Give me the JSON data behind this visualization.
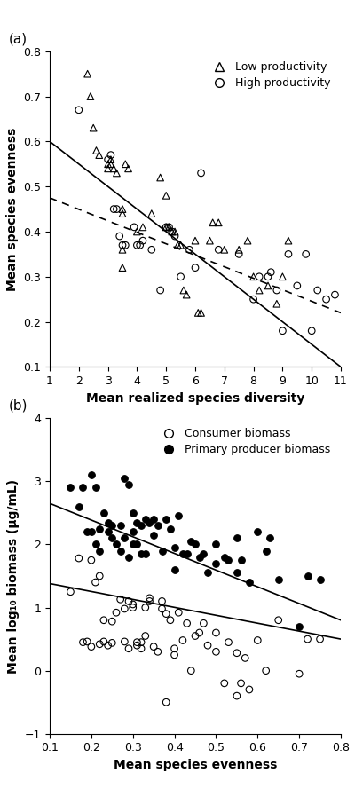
{
  "panel_a": {
    "title_label": "(a)",
    "xlabel": "Mean realized species diversity",
    "ylabel": "Mean species evenness",
    "xlim": [
      1,
      11
    ],
    "ylim": [
      0.1,
      0.8
    ],
    "xticks": [
      1,
      2,
      3,
      4,
      5,
      6,
      7,
      8,
      9,
      10,
      11
    ],
    "yticks": [
      0.1,
      0.2,
      0.3,
      0.4,
      0.5,
      0.6,
      0.7,
      0.8
    ],
    "low_prod_x": [
      2.3,
      2.4,
      2.5,
      2.6,
      2.7,
      3.0,
      3.0,
      3.1,
      3.1,
      3.2,
      3.3,
      3.5,
      3.5,
      3.5,
      3.5,
      3.6,
      3.7,
      4.0,
      4.2,
      4.5,
      4.8,
      5.0,
      5.0,
      5.1,
      5.2,
      5.3,
      5.4,
      5.5,
      5.6,
      5.7,
      6.0,
      6.1,
      6.2,
      6.5,
      6.6,
      6.8,
      7.0,
      7.5,
      7.8,
      8.0,
      8.2,
      8.5,
      8.8,
      9.0,
      9.2
    ],
    "low_prod_y": [
      0.75,
      0.7,
      0.63,
      0.58,
      0.57,
      0.54,
      0.55,
      0.55,
      0.56,
      0.54,
      0.53,
      0.45,
      0.44,
      0.36,
      0.32,
      0.55,
      0.54,
      0.4,
      0.41,
      0.44,
      0.52,
      0.48,
      0.41,
      0.41,
      0.4,
      0.4,
      0.37,
      0.37,
      0.27,
      0.26,
      0.38,
      0.22,
      0.22,
      0.38,
      0.42,
      0.42,
      0.36,
      0.36,
      0.38,
      0.3,
      0.27,
      0.28,
      0.24,
      0.3,
      0.38
    ],
    "high_prod_x": [
      2.0,
      3.0,
      3.1,
      3.2,
      3.3,
      3.4,
      3.5,
      3.6,
      3.9,
      4.0,
      4.1,
      4.2,
      4.5,
      4.8,
      5.0,
      5.1,
      5.2,
      5.3,
      5.5,
      5.8,
      6.0,
      6.2,
      6.8,
      7.5,
      8.0,
      8.2,
      8.5,
      8.6,
      8.8,
      9.0,
      9.2,
      9.5,
      9.8,
      10.0,
      10.2,
      10.5,
      10.8
    ],
    "high_prod_y": [
      0.67,
      0.56,
      0.57,
      0.45,
      0.45,
      0.39,
      0.37,
      0.37,
      0.41,
      0.37,
      0.37,
      0.38,
      0.36,
      0.27,
      0.41,
      0.41,
      0.4,
      0.39,
      0.3,
      0.36,
      0.32,
      0.53,
      0.36,
      0.35,
      0.25,
      0.3,
      0.3,
      0.31,
      0.27,
      0.18,
      0.35,
      0.28,
      0.35,
      0.18,
      0.27,
      0.25,
      0.26
    ],
    "solid_line_x": [
      1,
      11
    ],
    "solid_line_y": [
      0.6,
      0.1
    ],
    "dashed_line_x": [
      1,
      11
    ],
    "dashed_line_y": [
      0.475,
      0.22
    ],
    "legend_labels": [
      "Low productivity",
      "High productivity"
    ]
  },
  "panel_b": {
    "title_label": "(b)",
    "xlabel": "Mean species evenness",
    "ylabel": "Mean log₁₀ biomass (μg/mL)",
    "xlim": [
      0.1,
      0.8
    ],
    "ylim": [
      -1,
      4
    ],
    "xticks": [
      0.1,
      0.2,
      0.3,
      0.4,
      0.5,
      0.6,
      0.7,
      0.8
    ],
    "yticks": [
      -1,
      0,
      1,
      2,
      3,
      4
    ],
    "consumer_x": [
      0.15,
      0.17,
      0.18,
      0.19,
      0.2,
      0.2,
      0.21,
      0.22,
      0.22,
      0.23,
      0.23,
      0.24,
      0.25,
      0.25,
      0.26,
      0.27,
      0.28,
      0.28,
      0.29,
      0.29,
      0.3,
      0.3,
      0.31,
      0.31,
      0.32,
      0.32,
      0.33,
      0.33,
      0.34,
      0.34,
      0.35,
      0.36,
      0.37,
      0.37,
      0.38,
      0.38,
      0.39,
      0.4,
      0.4,
      0.41,
      0.42,
      0.43,
      0.44,
      0.45,
      0.46,
      0.47,
      0.48,
      0.5,
      0.5,
      0.52,
      0.53,
      0.55,
      0.55,
      0.56,
      0.57,
      0.58,
      0.6,
      0.62,
      0.65,
      0.7,
      0.72,
      0.75
    ],
    "consumer_y": [
      1.25,
      1.78,
      0.45,
      0.46,
      1.75,
      0.38,
      1.4,
      1.5,
      0.42,
      0.8,
      0.46,
      0.4,
      0.78,
      0.44,
      0.92,
      1.13,
      0.98,
      0.46,
      1.1,
      0.35,
      1.05,
      1.0,
      0.4,
      0.45,
      0.35,
      0.45,
      1.0,
      0.55,
      1.1,
      1.15,
      0.38,
      0.3,
      0.98,
      1.1,
      0.9,
      -0.5,
      0.8,
      0.35,
      0.25,
      0.92,
      0.48,
      0.75,
      0.0,
      0.55,
      0.6,
      0.75,
      0.4,
      0.6,
      0.3,
      -0.2,
      0.45,
      0.28,
      -0.4,
      -0.2,
      0.2,
      -0.3,
      0.48,
      0.0,
      0.8,
      -0.05,
      0.5,
      0.5
    ],
    "producer_x": [
      0.15,
      0.17,
      0.18,
      0.19,
      0.2,
      0.2,
      0.21,
      0.21,
      0.22,
      0.22,
      0.23,
      0.24,
      0.24,
      0.25,
      0.25,
      0.26,
      0.27,
      0.27,
      0.28,
      0.28,
      0.29,
      0.29,
      0.3,
      0.3,
      0.3,
      0.31,
      0.31,
      0.32,
      0.32,
      0.33,
      0.33,
      0.34,
      0.35,
      0.35,
      0.36,
      0.37,
      0.38,
      0.39,
      0.4,
      0.4,
      0.41,
      0.42,
      0.43,
      0.44,
      0.45,
      0.46,
      0.47,
      0.48,
      0.5,
      0.5,
      0.52,
      0.53,
      0.55,
      0.55,
      0.56,
      0.58,
      0.6,
      0.62,
      0.63,
      0.65,
      0.7,
      0.72,
      0.75
    ],
    "producer_y": [
      2.9,
      2.6,
      2.9,
      2.2,
      2.2,
      3.1,
      2.9,
      2.0,
      2.25,
      1.9,
      2.5,
      2.2,
      2.35,
      2.3,
      2.1,
      2.0,
      1.9,
      2.3,
      3.05,
      2.1,
      2.95,
      1.8,
      2.5,
      2.0,
      2.2,
      2.35,
      2.0,
      1.85,
      2.3,
      1.85,
      2.4,
      2.35,
      2.4,
      2.15,
      2.3,
      1.9,
      2.4,
      2.25,
      1.6,
      1.95,
      2.45,
      1.85,
      1.85,
      2.05,
      2.0,
      1.8,
      1.85,
      1.55,
      1.7,
      2.0,
      1.8,
      1.75,
      2.1,
      1.55,
      1.75,
      1.4,
      2.2,
      1.9,
      2.1,
      1.45,
      0.7,
      1.5,
      1.45
    ],
    "producer_line_x": [
      0.1,
      0.8
    ],
    "producer_line_y": [
      2.65,
      0.8
    ],
    "consumer_line_x": [
      0.1,
      0.8
    ],
    "consumer_line_y": [
      1.38,
      0.5
    ],
    "legend_labels": [
      "Consumer biomass",
      "Primary producer biomass"
    ]
  }
}
